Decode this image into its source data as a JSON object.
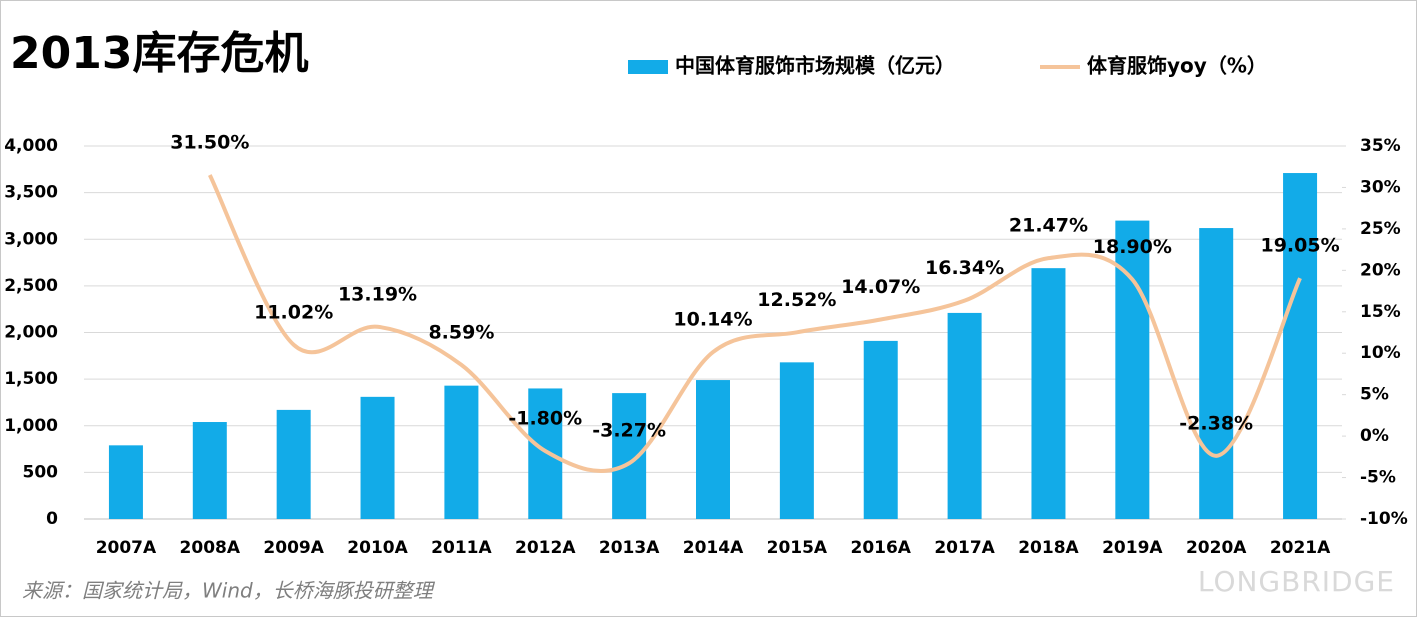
{
  "chart_data": {
    "type": "bar-line",
    "title": "2013库存危机",
    "source": "来源：国家统计局，Wind，长桥海豚投研整理",
    "watermark": "LONGBRIDGE",
    "categories": [
      "2007A",
      "2008A",
      "2009A",
      "2010A",
      "2011A",
      "2012A",
      "2013A",
      "2014A",
      "2015A",
      "2016A",
      "2017A",
      "2018A",
      "2019A",
      "2020A",
      "2021A"
    ],
    "series": [
      {
        "name": "中国体育服饰市场规模（亿元）",
        "type": "bar",
        "color": "#12abe8",
        "values": [
          790,
          1040,
          1170,
          1310,
          1430,
          1400,
          1350,
          1490,
          1680,
          1910,
          2210,
          2690,
          3200,
          3120,
          3710
        ]
      },
      {
        "name": "体育服饰yoy（%）",
        "type": "line",
        "axis": "y2",
        "color": "#f5c49a",
        "values": [
          null,
          31.5,
          11.02,
          13.19,
          8.59,
          -1.8,
          -3.27,
          10.14,
          12.52,
          14.07,
          16.34,
          21.47,
          18.9,
          -2.38,
          19.05
        ],
        "value_labels": [
          null,
          "31.50%",
          "11.02%",
          "13.19%",
          "8.59%",
          "-1.80%",
          "-3.27%",
          "10.14%",
          "12.52%",
          "14.07%",
          "16.34%",
          "21.47%",
          "18.90%",
          "-2.38%",
          "19.05%"
        ]
      }
    ],
    "ylim": [
      0,
      4000
    ],
    "yticks": [
      0,
      500,
      {
        "value": 1000,
        "label": "1,000"
      },
      {
        "value": 1500,
        "label": "1,500"
      },
      {
        "value": 2000,
        "label": "2,000"
      },
      {
        "value": 2500,
        "label": "2,500"
      },
      {
        "value": 3000,
        "label": "3,000"
      },
      {
        "value": 3500,
        "label": "3,500"
      },
      {
        "value": 4000,
        "label": "4,000"
      }
    ],
    "y2lim": [
      -10,
      35
    ],
    "y2ticks": [
      {
        "value": -10,
        "label": "-10%"
      },
      {
        "value": -5,
        "label": "-5%"
      },
      {
        "value": 0,
        "label": "0%"
      },
      {
        "value": 5,
        "label": "5%"
      },
      {
        "value": 10,
        "label": "10%"
      },
      {
        "value": 15,
        "label": "15%"
      },
      {
        "value": 20,
        "label": "20%"
      },
      {
        "value": 25,
        "label": "25%"
      },
      {
        "value": 30,
        "label": "30%"
      },
      {
        "value": 35,
        "label": "35%"
      }
    ],
    "grid": true
  }
}
